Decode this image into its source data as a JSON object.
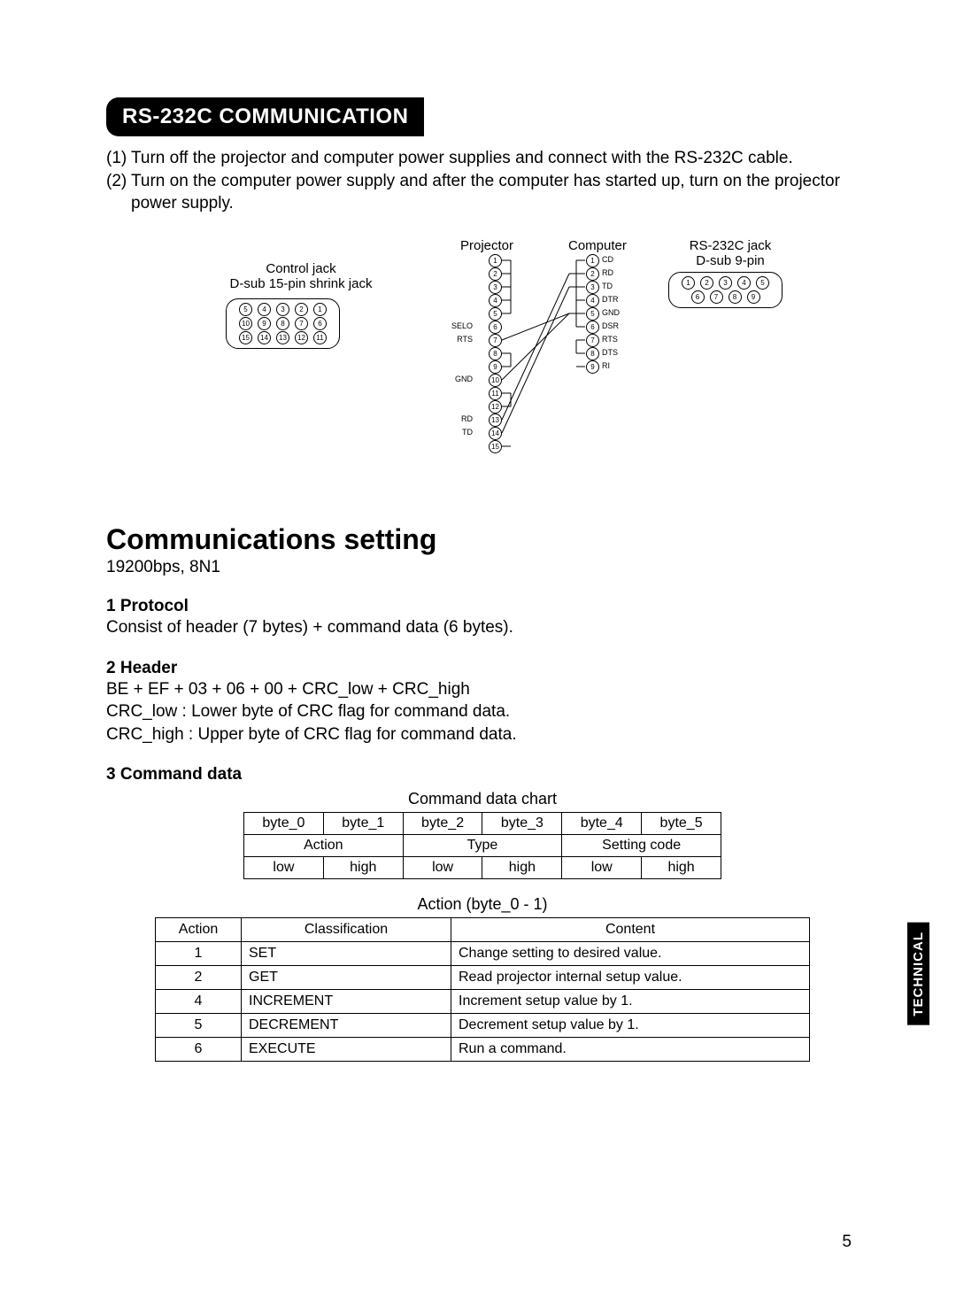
{
  "title": "RS-232C COMMUNICATION",
  "instructions": [
    {
      "num": "(1)",
      "text": "Turn off the projector and computer power supplies and connect with the RS-232C cable."
    },
    {
      "num": "(2)",
      "text": "Turn on the computer power supply and after the computer has started up, turn on the projector power supply."
    }
  ],
  "diagram": {
    "control_jack_label": "Control jack",
    "control_jack_sub": "D-sub 15-pin shrink jack",
    "projector_label": "Projector",
    "computer_label": "Computer",
    "rs232c_label": "RS-232C jack",
    "rs232c_sub": "D-sub 9-pin",
    "projector_pins": [
      "1",
      "2",
      "3",
      "4",
      "5",
      "6",
      "7",
      "8",
      "9",
      "10",
      "11",
      "12",
      "13",
      "14",
      "15"
    ],
    "projector_pin_labels": {
      "6": "SELO",
      "7": "RTS",
      "10": "GND",
      "13": "RD",
      "14": "TD"
    },
    "computer_pins": [
      "1",
      "2",
      "3",
      "4",
      "5",
      "6",
      "7",
      "8",
      "9"
    ],
    "computer_pin_labels": {
      "1": "CD",
      "2": "RD",
      "3": "TD",
      "4": "DTR",
      "5": "GND",
      "6": "DSR",
      "7": "RTS",
      "8": "DTS",
      "9": "RI"
    },
    "dsub15_rows": [
      [
        "5",
        "4",
        "3",
        "2",
        "1"
      ],
      [
        "10",
        "9",
        "8",
        "7",
        "6"
      ],
      [
        "15",
        "14",
        "13",
        "12",
        "11"
      ]
    ],
    "dsub9_rows": [
      [
        "1",
        "2",
        "3",
        "4",
        "5"
      ],
      [
        "6",
        "7",
        "8",
        "9"
      ]
    ]
  },
  "comm_heading": "Communications setting",
  "comm_rate": "19200bps,  8N1",
  "protocol": {
    "h": "1 Protocol",
    "body": "Consist of header (7 bytes) + command data (6 bytes)."
  },
  "header": {
    "h": "2 Header",
    "line1": "BE + EF + 03 + 06 + 00 + CRC_low + CRC_high",
    "line2": "CRC_low : Lower byte of CRC flag for command data.",
    "line3": "CRC_high : Upper byte of CRC flag for command data."
  },
  "cmd": {
    "h": "3 Command data",
    "chart_title": "Command data chart",
    "byte_headers": [
      "byte_0",
      "byte_1",
      "byte_2",
      "byte_3",
      "byte_4",
      "byte_5"
    ],
    "group_headers": [
      "Action",
      "Type",
      "Setting code"
    ],
    "lowhigh": [
      "low",
      "high",
      "low",
      "high",
      "low",
      "high"
    ],
    "action_title": "Action (byte_0 - 1)",
    "action_headers": [
      "Action",
      "Classification",
      "Content"
    ],
    "actions": [
      {
        "a": "1",
        "cl": "SET",
        "ct": "Change setting to desired value."
      },
      {
        "a": "2",
        "cl": "GET",
        "ct": "Read projector internal setup value."
      },
      {
        "a": "4",
        "cl": "INCREMENT",
        "ct": "Increment setup value by 1."
      },
      {
        "a": "5",
        "cl": "DECREMENT",
        "ct": "Decrement setup value by 1."
      },
      {
        "a": "6",
        "cl": "EXECUTE",
        "ct": "Run a command."
      }
    ]
  },
  "side_tab": "TECHNICAL",
  "page_num": "5"
}
